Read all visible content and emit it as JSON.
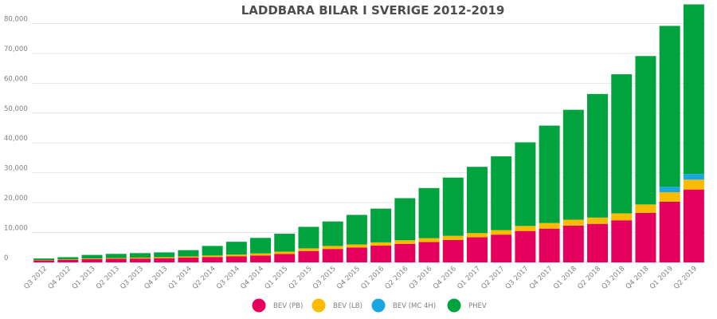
{
  "chart_data": {
    "type": "bar",
    "stacked": true,
    "title": "LADDBARA BILAR I SVERIGE 2012-2019",
    "xlabel": "",
    "ylabel": "",
    "ylim": [
      0,
      86000
    ],
    "yticks": [
      0,
      10000,
      20000,
      30000,
      40000,
      50000,
      60000,
      70000,
      80000
    ],
    "ytick_labels": [
      "0",
      "10,000",
      "20,000",
      "30,000",
      "40,000",
      "50,000",
      "60,000",
      "70,000",
      "80,000"
    ],
    "grid": true,
    "legend_position": "bottom",
    "categories": [
      "Q3 2012",
      "Q4 2012",
      "Q1 2013",
      "Q2 2013",
      "Q3 2013",
      "Q4 2013",
      "Q1 2014",
      "Q2 2014",
      "Q3 2014",
      "Q4 2014",
      "Q1 2015",
      "Q2 2015",
      "Q3 2015",
      "Q4 2015",
      "Q1 2016",
      "Q2 2016",
      "Q3 2016",
      "Q4 2016",
      "Q1 2017",
      "Q2 2017",
      "Q3 2017",
      "Q4 2017",
      "Q1 2018",
      "Q2 2018",
      "Q3 2018",
      "Q4 2018",
      "Q1 2019",
      "Q2 2019"
    ],
    "series": [
      {
        "name": "BEV (PB)",
        "color": "#e5005e",
        "values": [
          700,
          900,
          1100,
          1200,
          1300,
          1400,
          1600,
          1800,
          2000,
          2300,
          2800,
          3800,
          4500,
          5000,
          5600,
          6200,
          6800,
          7500,
          8400,
          9300,
          10500,
          11300,
          12300,
          12900,
          14100,
          16600,
          20300,
          24400
        ]
      },
      {
        "name": "BEV (LB)",
        "color": "#fbbb00",
        "values": [
          100,
          150,
          200,
          250,
          300,
          350,
          400,
          500,
          600,
          700,
          800,
          900,
          1000,
          1000,
          1100,
          1200,
          1300,
          1400,
          1400,
          1500,
          1700,
          1900,
          2000,
          2100,
          2300,
          2800,
          3200,
          3300
        ]
      },
      {
        "name": "BEV (MC 4H)",
        "color": "#1aa6e0",
        "values": [
          0,
          0,
          0,
          0,
          0,
          0,
          0,
          0,
          0,
          0,
          0,
          0,
          0,
          0,
          0,
          0,
          0,
          0,
          0,
          0,
          0,
          0,
          0,
          0,
          0,
          0,
          1800,
          1900
        ]
      },
      {
        "name": "PHEV",
        "color": "#00a33d",
        "values": [
          500,
          700,
          1200,
          1400,
          1500,
          1600,
          2100,
          3200,
          4300,
          5200,
          6000,
          7200,
          8200,
          9900,
          11300,
          14100,
          16800,
          19500,
          22200,
          24700,
          28000,
          32600,
          36800,
          41400,
          46600,
          49700,
          53900,
          56800
        ]
      }
    ]
  }
}
